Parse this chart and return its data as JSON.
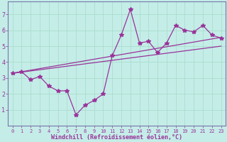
{
  "xlabel": "Windchill (Refroidissement éolien,°C)",
  "bg_color": "#c4ede8",
  "line_color": "#993399",
  "grid_color": "#aaddcc",
  "spine_color": "#7777aa",
  "scatter_x": [
    0,
    1,
    2,
    3,
    4,
    5,
    6,
    7,
    8,
    9,
    10,
    11,
    12,
    13,
    14,
    15,
    16,
    17,
    18,
    19,
    20,
    21,
    22,
    23
  ],
  "scatter_y": [
    3.3,
    3.4,
    2.9,
    3.1,
    2.5,
    2.2,
    2.2,
    0.7,
    1.3,
    1.6,
    2.0,
    4.4,
    5.7,
    7.3,
    5.2,
    5.3,
    4.6,
    5.2,
    6.3,
    6.0,
    5.9,
    6.3,
    5.7,
    5.5
  ],
  "trend1_x": [
    0,
    23
  ],
  "trend1_y": [
    3.3,
    5.55
  ],
  "trend2_x": [
    0,
    23
  ],
  "trend2_y": [
    3.3,
    5.0
  ],
  "ylim": [
    0,
    7.8
  ],
  "xlim": [
    -0.5,
    23.5
  ],
  "yticks": [
    1,
    2,
    3,
    4,
    5,
    6,
    7
  ],
  "xticks": [
    0,
    1,
    2,
    3,
    4,
    5,
    6,
    7,
    8,
    9,
    10,
    11,
    12,
    13,
    14,
    15,
    16,
    17,
    18,
    19,
    20,
    21,
    22,
    23
  ],
  "xlabel_fontsize": 6,
  "tick_fontsize": 6
}
